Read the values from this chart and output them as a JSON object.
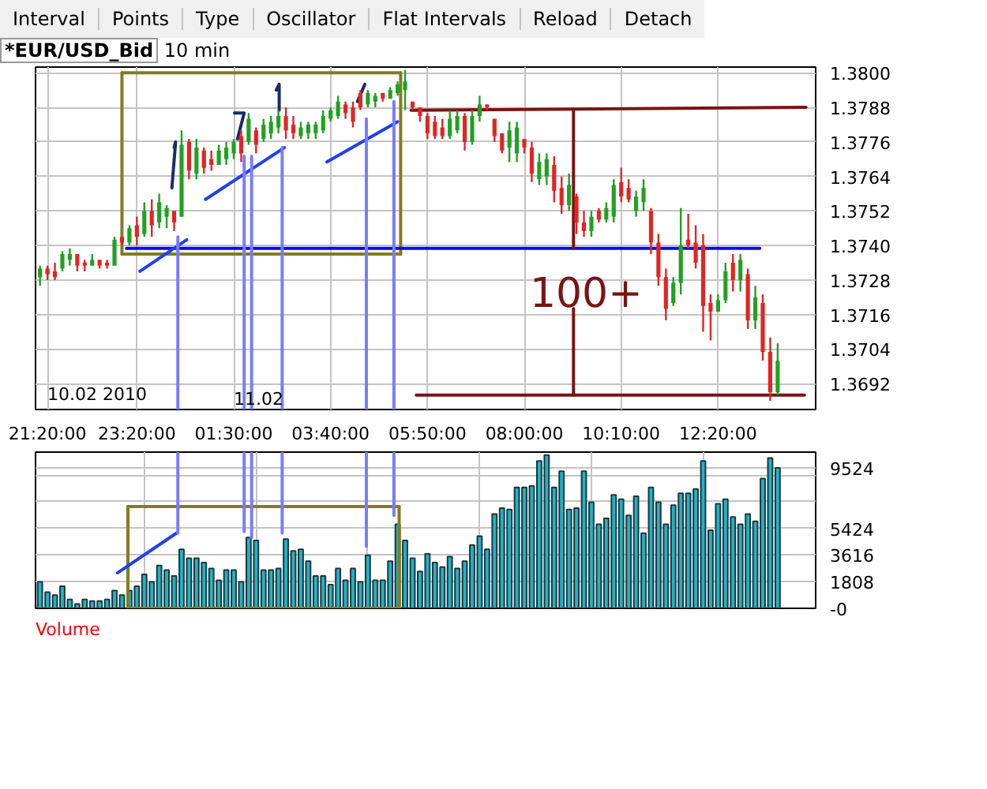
{
  "chart_data": [
    {
      "type": "other",
      "annotations": [
        "Interval",
        "Points",
        "Type",
        "Oscillator",
        "Flat Intervals",
        "Reload",
        "Detach"
      ]
    },
    {
      "type": "candlestick",
      "title": "*EUR/USD_Bid",
      "subtitle": "10 min",
      "x": [
        "2010-02-10T21:10",
        "2010-02-10T21:20",
        "2010-02-10T21:30",
        "2010-02-10T21:40",
        "2010-02-10T21:50",
        "2010-02-10T22:00",
        "2010-02-10T22:10",
        "2010-02-10T22:20",
        "2010-02-10T22:30",
        "2010-02-10T22:40",
        "2010-02-10T22:50",
        "2010-02-10T23:00",
        "2010-02-10T23:10",
        "2010-02-10T23:20",
        "2010-02-10T23:30",
        "2010-02-10T23:40",
        "2010-02-10T23:50",
        "2010-02-11T00:00",
        "2010-02-11T00:10",
        "2010-02-11T00:20",
        "2010-02-11T00:30",
        "2010-02-11T00:40",
        "2010-02-11T00:50",
        "2010-02-11T01:00",
        "2010-02-11T01:10",
        "2010-02-11T01:20",
        "2010-02-11T01:30",
        "2010-02-11T01:40",
        "2010-02-11T01:50",
        "2010-02-11T02:00",
        "2010-02-11T02:10",
        "2010-02-11T02:20",
        "2010-02-11T02:30",
        "2010-02-11T02:40",
        "2010-02-11T02:50",
        "2010-02-11T03:00",
        "2010-02-11T03:10",
        "2010-02-11T03:20",
        "2010-02-11T03:30",
        "2010-02-11T03:40",
        "2010-02-11T03:50",
        "2010-02-11T04:00",
        "2010-02-11T04:10",
        "2010-02-11T04:20",
        "2010-02-11T04:30",
        "2010-02-11T04:40",
        "2010-02-11T04:50",
        "2010-02-11T05:00",
        "2010-02-11T05:10",
        "2010-02-11T05:20",
        "2010-02-11T05:30",
        "2010-02-11T05:40",
        "2010-02-11T05:50",
        "2010-02-11T06:00",
        "2010-02-11T06:10",
        "2010-02-11T06:20",
        "2010-02-11T06:30",
        "2010-02-11T06:40",
        "2010-02-11T06:50",
        "2010-02-11T07:00",
        "2010-02-11T07:10",
        "2010-02-11T07:20",
        "2010-02-11T07:30",
        "2010-02-11T07:40",
        "2010-02-11T07:50",
        "2010-02-11T08:00",
        "2010-02-11T08:10",
        "2010-02-11T08:20",
        "2010-02-11T08:30",
        "2010-02-11T08:40",
        "2010-02-11T08:50",
        "2010-02-11T09:00",
        "2010-02-11T09:10",
        "2010-02-11T09:20",
        "2010-02-11T09:30",
        "2010-02-11T09:40",
        "2010-02-11T09:50",
        "2010-02-11T10:00",
        "2010-02-11T10:10",
        "2010-02-11T10:20",
        "2010-02-11T10:30",
        "2010-02-11T10:40",
        "2010-02-11T10:50",
        "2010-02-11T11:00",
        "2010-02-11T11:10",
        "2010-02-11T11:20",
        "2010-02-11T11:30",
        "2010-02-11T11:40",
        "2010-02-11T11:50",
        "2010-02-11T12:00",
        "2010-02-11T12:10",
        "2010-02-11T12:20",
        "2010-02-11T12:30",
        "2010-02-11T12:40",
        "2010-02-11T12:50",
        "2010-02-11T13:00",
        "2010-02-11T13:10",
        "2010-02-11T13:20",
        "2010-02-11T13:30",
        "2010-02-11T13:40"
      ],
      "ohlc": [
        [
          1.3729,
          1.3733,
          1.3726,
          1.3732
        ],
        [
          1.3732,
          1.3733,
          1.3728,
          1.373
        ],
        [
          1.3731,
          1.3734,
          1.3728,
          1.3729
        ],
        [
          1.3732,
          1.3738,
          1.3731,
          1.3737
        ],
        [
          1.3735,
          1.3739,
          1.3733,
          1.3737
        ],
        [
          1.3737,
          1.3737,
          1.3731,
          1.3733
        ],
        [
          1.3734,
          1.3735,
          1.3731,
          1.3733
        ],
        [
          1.3733,
          1.3737,
          1.3733,
          1.3735
        ],
        [
          1.3735,
          1.3735,
          1.3732,
          1.3733
        ],
        [
          1.3734,
          1.3735,
          1.3732,
          1.3733
        ],
        [
          1.3733,
          1.3743,
          1.3733,
          1.3742
        ],
        [
          1.3743,
          1.3743,
          1.374,
          1.3741
        ],
        [
          1.3741,
          1.3747,
          1.374,
          1.3746
        ],
        [
          1.3747,
          1.375,
          1.374,
          1.3743
        ],
        [
          1.3744,
          1.3755,
          1.3743,
          1.3752
        ],
        [
          1.3752,
          1.3756,
          1.3743,
          1.3747
        ],
        [
          1.3748,
          1.3758,
          1.3746,
          1.3755
        ],
        [
          1.375,
          1.3754,
          1.3746,
          1.3753
        ],
        [
          1.3752,
          1.3752,
          1.3745,
          1.3748
        ],
        [
          1.375,
          1.378,
          1.375,
          1.3775
        ],
        [
          1.3776,
          1.3777,
          1.3763,
          1.3766
        ],
        [
          1.3765,
          1.3777,
          1.3763,
          1.3774
        ],
        [
          1.3773,
          1.3774,
          1.3765,
          1.3767
        ],
        [
          1.377,
          1.3773,
          1.3766,
          1.3768
        ],
        [
          1.3768,
          1.3775,
          1.3768,
          1.3773
        ],
        [
          1.377,
          1.3776,
          1.3768,
          1.3774
        ],
        [
          1.3772,
          1.3777,
          1.377,
          1.3776
        ],
        [
          1.3778,
          1.378,
          1.3769,
          1.3772
        ],
        [
          1.3776,
          1.3786,
          1.3775,
          1.3784
        ],
        [
          1.378,
          1.3781,
          1.3772,
          1.3775
        ],
        [
          1.3777,
          1.3784,
          1.3776,
          1.3782
        ],
        [
          1.3779,
          1.3785,
          1.3777,
          1.3783
        ],
        [
          1.3781,
          1.3787,
          1.3779,
          1.3785
        ],
        [
          1.3785,
          1.3788,
          1.3777,
          1.378
        ],
        [
          1.3782,
          1.3785,
          1.3777,
          1.3779
        ],
        [
          1.3778,
          1.3783,
          1.3777,
          1.3781
        ],
        [
          1.3779,
          1.3783,
          1.3777,
          1.3782
        ],
        [
          1.3779,
          1.3783,
          1.3777,
          1.3782
        ],
        [
          1.378,
          1.3787,
          1.3779,
          1.3785
        ],
        [
          1.3784,
          1.3788,
          1.3783,
          1.3787
        ],
        [
          1.3785,
          1.3792,
          1.3784,
          1.379
        ],
        [
          1.3789,
          1.379,
          1.3784,
          1.3786
        ],
        [
          1.3788,
          1.379,
          1.3781,
          1.3783
        ],
        [
          1.3793,
          1.3794,
          1.3787,
          1.3788
        ],
        [
          1.3789,
          1.3794,
          1.3788,
          1.3793
        ],
        [
          1.379,
          1.3793,
          1.3788,
          1.3792
        ],
        [
          1.3793,
          1.3793,
          1.379,
          1.3791
        ],
        [
          1.3791,
          1.3795,
          1.3791,
          1.3794
        ],
        [
          1.3793,
          1.3797,
          1.3792,
          1.3796
        ],
        [
          1.3794,
          1.3801,
          1.3787,
          1.3797
        ],
        [
          1.379,
          1.379,
          1.3787,
          1.3788
        ],
        [
          1.3788,
          1.3788,
          1.3783,
          1.3785
        ],
        [
          1.3785,
          1.3786,
          1.3777,
          1.3779
        ],
        [
          1.3783,
          1.3785,
          1.3777,
          1.3778
        ],
        [
          1.3781,
          1.3784,
          1.3777,
          1.3778
        ],
        [
          1.3778,
          1.3787,
          1.3777,
          1.3784
        ],
        [
          1.378,
          1.3787,
          1.3779,
          1.3785
        ],
        [
          1.3785,
          1.3786,
          1.3773,
          1.3776
        ],
        [
          1.3776,
          1.3787,
          1.3775,
          1.3785
        ],
        [
          1.3785,
          1.3792,
          1.3783,
          1.3789
        ],
        [
          1.3789,
          1.3789,
          1.3787,
          1.3788
        ],
        [
          1.3784,
          1.3784,
          1.3776,
          1.3778
        ],
        [
          1.3779,
          1.3779,
          1.3772,
          1.3773
        ],
        [
          1.3774,
          1.3783,
          1.3769,
          1.378
        ],
        [
          1.3772,
          1.3783,
          1.3769,
          1.3781
        ],
        [
          1.3777,
          1.3777,
          1.3772,
          1.3774
        ],
        [
          1.3774,
          1.3776,
          1.3762,
          1.3765
        ],
        [
          1.3763,
          1.3772,
          1.3761,
          1.3769
        ],
        [
          1.3764,
          1.3772,
          1.3761,
          1.377
        ],
        [
          1.3768,
          1.3771,
          1.3755,
          1.3759
        ],
        [
          1.376,
          1.3764,
          1.3751,
          1.3754
        ],
        [
          1.3754,
          1.3765,
          1.3752,
          1.3761
        ],
        [
          1.3757,
          1.3758,
          1.3744,
          1.3748
        ],
        [
          1.3748,
          1.3752,
          1.3743,
          1.3745
        ],
        [
          1.3745,
          1.3752,
          1.3743,
          1.375
        ],
        [
          1.3752,
          1.3753,
          1.3748,
          1.3749
        ],
        [
          1.3749,
          1.3755,
          1.3748,
          1.3753
        ],
        [
          1.375,
          1.3763,
          1.3748,
          1.3761
        ],
        [
          1.3762,
          1.3767,
          1.3755,
          1.3757
        ],
        [
          1.376,
          1.3763,
          1.3755,
          1.3756
        ],
        [
          1.3752,
          1.3759,
          1.375,
          1.3757
        ],
        [
          1.3755,
          1.3763,
          1.3752,
          1.376
        ],
        [
          1.3752,
          1.3753,
          1.3737,
          1.3741
        ],
        [
          1.3741,
          1.3744,
          1.3726,
          1.3729
        ],
        [
          1.3729,
          1.3732,
          1.3714,
          1.3718
        ],
        [
          1.372,
          1.3729,
          1.3719,
          1.3727
        ],
        [
          1.3727,
          1.3753,
          1.3723,
          1.374
        ],
        [
          1.3742,
          1.3751,
          1.3739,
          1.374
        ],
        [
          1.3741,
          1.3747,
          1.3732,
          1.3734
        ],
        [
          1.374,
          1.3744,
          1.371,
          1.3719
        ],
        [
          1.372,
          1.3723,
          1.3707,
          1.3717
        ],
        [
          1.3717,
          1.3723,
          1.3717,
          1.3721
        ],
        [
          1.3721,
          1.3734,
          1.372,
          1.3731
        ],
        [
          1.3734,
          1.3737,
          1.3724,
          1.3728
        ],
        [
          1.3728,
          1.3737,
          1.3724,
          1.3735
        ],
        [
          1.373,
          1.3732,
          1.3711,
          1.3714
        ],
        [
          1.3714,
          1.3726,
          1.3711,
          1.3722
        ],
        [
          1.372,
          1.3723,
          1.37,
          1.3703
        ],
        [
          1.3703,
          1.3708,
          1.3686,
          1.3689
        ],
        [
          1.3689,
          1.3706,
          1.3688,
          1.37
        ]
      ],
      "colors": [
        "#21a121",
        "#e32424",
        "#e32424",
        "#21a121",
        "#21a121",
        "#e32424",
        "#e32424",
        "#21a121",
        "#e32424",
        "#e32424",
        "#21a121",
        "#e32424",
        "#21a121",
        "#e32424",
        "#21a121",
        "#e32424",
        "#21a121",
        "#21a121",
        "#e32424",
        "#21a121",
        "#e32424",
        "#21a121",
        "#e32424",
        "#e32424",
        "#21a121",
        "#21a121",
        "#21a121",
        "#e32424",
        "#21a121",
        "#e32424",
        "#21a121",
        "#21a121",
        "#21a121",
        "#e32424",
        "#e32424",
        "#21a121",
        "#21a121",
        "#21a121",
        "#21a121",
        "#21a121",
        "#21a121",
        "#e32424",
        "#e32424",
        "#e32424",
        "#21a121",
        "#21a121",
        "#e32424",
        "#21a121",
        "#21a121",
        "#21a121",
        "#e32424",
        "#e32424",
        "#e32424",
        "#e32424",
        "#e32424",
        "#21a121",
        "#21a121",
        "#e32424",
        "#21a121",
        "#21a121",
        "#e32424",
        "#e32424",
        "#e32424",
        "#21a121",
        "#21a121",
        "#e32424",
        "#e32424",
        "#21a121",
        "#21a121",
        "#e32424",
        "#e32424",
        "#21a121",
        "#e32424",
        "#e32424",
        "#21a121",
        "#e32424",
        "#21a121",
        "#21a121",
        "#e32424",
        "#e32424",
        "#21a121",
        "#21a121",
        "#e32424",
        "#e32424",
        "#e32424",
        "#21a121",
        "#21a121",
        "#e32424",
        "#e32424",
        "#e32424",
        "#e32424",
        "#21a121",
        "#21a121",
        "#e32424",
        "#21a121",
        "#e32424",
        "#21a121",
        "#e32424",
        "#e32424",
        "#21a121"
      ],
      "series": [
        {
          "type": "line",
          "color": "#807d22",
          "x": [
            "2010-02-10T23:00",
            "2010-02-11T05:14"
          ],
          "values": [
            1.38,
            1.38
          ]
        },
        {
          "type": "line",
          "color": "#807d22",
          "x": [
            "2010-02-10T23:00",
            "2010-02-11T05:14"
          ],
          "values": [
            1.3737,
            1.3737
          ]
        },
        {
          "type": "line",
          "color": "#807d22",
          "x": [
            "2010-02-10T23:00",
            "2010-02-10T23:00"
          ],
          "values": [
            1.3737,
            1.38
          ]
        },
        {
          "type": "line",
          "color": "#807d22",
          "x": [
            "2010-02-11T05:14",
            "2010-02-11T05:14"
          ],
          "values": [
            1.3737,
            1.38
          ]
        },
        {
          "type": "line",
          "color": "#0a0aee",
          "x": [
            "2010-02-10T23:06",
            "2010-02-11T13:16"
          ],
          "values": [
            1.3739,
            1.3739
          ]
        },
        {
          "type": "line",
          "color": "#7a1414",
          "x": [
            "2010-02-11T05:28",
            "2010-02-11T14:18"
          ],
          "values": [
            1.3787,
            1.3788
          ]
        },
        {
          "type": "line",
          "color": "#7a1414",
          "x": [
            "2010-02-11T05:35",
            "2010-02-11T14:16"
          ],
          "values": [
            1.3688,
            1.3688
          ]
        },
        {
          "type": "line",
          "color": "#7a1414",
          "x": [
            "2010-02-11T09:06",
            "2010-02-11T09:06"
          ],
          "values": [
            1.3787,
            1.3739
          ]
        },
        {
          "type": "line",
          "name": "100+",
          "color": "#7a1414",
          "x": [
            "2010-02-11T09:06",
            "2010-02-11T09:06"
          ],
          "values": [
            1.3718,
            1.3688
          ]
        },
        {
          "type": "line",
          "color": "#2040f0",
          "x": [
            "2010-02-10T23:24",
            "2010-02-11T00:27"
          ],
          "values": [
            1.3731,
            1.3742
          ]
        },
        {
          "type": "line",
          "color": "#2040f0",
          "x": [
            "2010-02-11T00:52",
            "2010-02-11T02:38"
          ],
          "values": [
            1.3756,
            1.3774
          ]
        },
        {
          "type": "line",
          "color": "#2040f0",
          "x": [
            "2010-02-11T03:35",
            "2010-02-11T05:10"
          ],
          "values": [
            1.3769,
            1.3783
          ]
        },
        {
          "type": "line",
          "color": "#7b7bff",
          "x": [
            "2010-02-11T00:15",
            "2010-02-11T00:15"
          ],
          "values": [
            1.3743,
            1.3683
          ]
        },
        {
          "type": "line",
          "color": "#7b7bff",
          "x": [
            "2010-02-11T01:44",
            "2010-02-11T01:44"
          ],
          "values": [
            1.3771,
            1.3683
          ]
        },
        {
          "type": "line",
          "color": "#7b7bff",
          "x": [
            "2010-02-11T01:54",
            "2010-02-11T01:54"
          ],
          "values": [
            1.3771,
            1.3683
          ]
        },
        {
          "type": "line",
          "color": "#7b7bff",
          "x": [
            "2010-02-11T02:35",
            "2010-02-11T02:35"
          ],
          "values": [
            1.3774,
            1.3683
          ]
        },
        {
          "type": "line",
          "color": "#7b7bff",
          "x": [
            "2010-02-11T04:28",
            "2010-02-11T04:28"
          ],
          "values": [
            1.3784,
            1.3683
          ]
        },
        {
          "type": "line",
          "color": "#7b7bff",
          "x": [
            "2010-02-11T05:05",
            "2010-02-11T05:05"
          ],
          "values": [
            1.379,
            1.3683
          ]
        },
        {
          "type": "line",
          "color": "#1d2b6b",
          "x": [
            "2010-02-11T00:10",
            "2010-02-11T00:12",
            "2010-02-11T00:07"
          ],
          "values": [
            1.3774,
            1.3776,
            1.376
          ]
        },
        {
          "type": "line",
          "color": "#1d2b6b",
          "x": [
            "2010-02-11T01:31",
            "2010-02-11T01:44",
            "2010-02-11T01:35"
          ],
          "values": [
            1.3786,
            1.3786,
            1.3777
          ]
        },
        {
          "type": "line",
          "color": "#1d2b6b",
          "x": [
            "2010-02-11T02:27",
            "2010-02-11T02:31",
            "2010-02-11T02:31"
          ],
          "values": [
            1.3794,
            1.3796,
            1.3787
          ]
        },
        {
          "type": "line",
          "color": "#1d2b6b",
          "x": [
            "2010-02-11T04:16",
            "2010-02-11T04:26"
          ],
          "values": [
            1.379,
            1.3796
          ]
        }
      ],
      "xlim": [
        "2010-02-10T21:04",
        "2010-02-11T14:31"
      ],
      "ylim": [
        1.3683,
        1.3802
      ],
      "xticks": [
        {
          "value": "2010-02-10T21:20",
          "label": "21:20:00"
        },
        {
          "value": "2010-02-10T23:20",
          "label": "23:20:00"
        },
        {
          "value": "2010-02-11T01:30",
          "label": "01:30:00"
        },
        {
          "value": "2010-02-11T03:40",
          "label": "03:40:00"
        },
        {
          "value": "2010-02-11T05:50",
          "label": "05:50:00"
        },
        {
          "value": "2010-02-11T08:00",
          "label": "08:00:00"
        },
        {
          "value": "2010-02-11T10:10",
          "label": "10:10:00"
        },
        {
          "value": "2010-02-11T12:20",
          "label": "12:20:00"
        }
      ],
      "yticks": [
        1.3692,
        1.3704,
        1.3716,
        1.3728,
        {
          "value": 1.374,
          "label": "1.3740"
        },
        1.3752,
        1.3764,
        1.3776,
        1.3788,
        {
          "value": 1.38,
          "label": "1.3800"
        }
      ],
      "grid": true,
      "annotations": [
        "10.02 2010",
        "11.02"
      ]
    },
    {
      "type": "bar",
      "title": "Volume",
      "x": [
        "2010-02-10T21:10",
        "2010-02-10T21:20",
        "2010-02-10T21:30",
        "2010-02-10T21:40",
        "2010-02-10T21:50",
        "2010-02-10T22:00",
        "2010-02-10T22:10",
        "2010-02-10T22:20",
        "2010-02-10T22:30",
        "2010-02-10T22:40",
        "2010-02-10T22:50",
        "2010-02-10T23:00",
        "2010-02-10T23:10",
        "2010-02-10T23:20",
        "2010-02-10T23:30",
        "2010-02-10T23:40",
        "2010-02-10T23:50",
        "2010-02-11T00:00",
        "2010-02-11T00:10",
        "2010-02-11T00:20",
        "2010-02-11T00:30",
        "2010-02-11T00:40",
        "2010-02-11T00:50",
        "2010-02-11T01:00",
        "2010-02-11T01:10",
        "2010-02-11T01:20",
        "2010-02-11T01:30",
        "2010-02-11T01:40",
        "2010-02-11T01:50",
        "2010-02-11T02:00",
        "2010-02-11T02:10",
        "2010-02-11T02:20",
        "2010-02-11T02:30",
        "2010-02-11T02:40",
        "2010-02-11T02:50",
        "2010-02-11T03:00",
        "2010-02-11T03:10",
        "2010-02-11T03:20",
        "2010-02-11T03:30",
        "2010-02-11T03:40",
        "2010-02-11T03:50",
        "2010-02-11T04:00",
        "2010-02-11T04:10",
        "2010-02-11T04:20",
        "2010-02-11T04:30",
        "2010-02-11T04:40",
        "2010-02-11T04:50",
        "2010-02-11T05:00",
        "2010-02-11T05:10",
        "2010-02-11T05:20",
        "2010-02-11T05:30",
        "2010-02-11T05:40",
        "2010-02-11T05:50",
        "2010-02-11T06:00",
        "2010-02-11T06:10",
        "2010-02-11T06:20",
        "2010-02-11T06:30",
        "2010-02-11T06:40",
        "2010-02-11T06:50",
        "2010-02-11T07:00",
        "2010-02-11T07:10",
        "2010-02-11T07:20",
        "2010-02-11T07:30",
        "2010-02-11T07:40",
        "2010-02-11T07:50",
        "2010-02-11T08:00",
        "2010-02-11T08:10",
        "2010-02-11T08:20",
        "2010-02-11T08:30",
        "2010-02-11T08:40",
        "2010-02-11T08:50",
        "2010-02-11T09:00",
        "2010-02-11T09:10",
        "2010-02-11T09:20",
        "2010-02-11T09:30",
        "2010-02-11T09:40",
        "2010-02-11T09:50",
        "2010-02-11T10:00",
        "2010-02-11T10:10",
        "2010-02-11T10:20",
        "2010-02-11T10:30",
        "2010-02-11T10:40",
        "2010-02-11T10:50",
        "2010-02-11T11:00",
        "2010-02-11T11:10",
        "2010-02-11T11:20",
        "2010-02-11T11:30",
        "2010-02-11T11:40",
        "2010-02-11T11:50",
        "2010-02-11T12:00",
        "2010-02-11T12:10",
        "2010-02-11T12:20",
        "2010-02-11T12:30",
        "2010-02-11T12:40",
        "2010-02-11T12:50",
        "2010-02-11T13:00",
        "2010-02-11T13:10",
        "2010-02-11T13:20",
        "2010-02-11T13:30",
        "2010-02-11T13:40"
      ],
      "series": [
        {
          "type": "bar",
          "color": "#19b6c9",
          "values": [
            1800,
            1100,
            900,
            1500,
            600,
            300,
            600,
            500,
            500,
            600,
            1200,
            900,
            1200,
            1500,
            2300,
            1800,
            2900,
            2600,
            2200,
            4000,
            3400,
            3400,
            3100,
            2700,
            1900,
            2600,
            2600,
            1800,
            4800,
            4600,
            2600,
            2600,
            2700,
            4700,
            3900,
            4000,
            3200,
            2200,
            2200,
            1600,
            2700,
            1900,
            2700,
            1800,
            3600,
            1900,
            1900,
            3200,
            5700,
            4600,
            3400,
            2500,
            3700,
            3100,
            2800,
            3500,
            2700,
            3200,
            4300,
            4900,
            4000,
            6400,
            6800,
            6700,
            8200,
            8200,
            8300,
            10000,
            10400,
            8200,
            9300,
            6700,
            6800,
            9300,
            7200,
            5700,
            6100,
            7700,
            7400,
            6300,
            7600,
            5100,
            8200,
            7200,
            5700,
            7000,
            7800,
            7800,
            8100,
            10000,
            5300,
            7100,
            7400,
            6200,
            5700,
            6400,
            5900,
            8800,
            10200,
            9524
          ]
        },
        {
          "type": "line",
          "color": "#807d22",
          "x": [
            "2010-02-10T23:08",
            "2010-02-11T05:12"
          ],
          "values": [
            6900,
            6900
          ]
        },
        {
          "type": "line",
          "color": "#807d22",
          "x": [
            "2010-02-10T23:08",
            "2010-02-11T05:12"
          ],
          "values": [
            0,
            0
          ]
        },
        {
          "type": "line",
          "color": "#807d22",
          "x": [
            "2010-02-10T23:08",
            "2010-02-10T23:08"
          ],
          "values": [
            0,
            6900
          ]
        },
        {
          "type": "line",
          "color": "#807d22",
          "x": [
            "2010-02-11T05:12",
            "2010-02-11T05:12"
          ],
          "values": [
            0,
            6900
          ]
        },
        {
          "type": "line",
          "color": "#2040f0",
          "x": [
            "2010-02-10T22:54",
            "2010-02-11T00:13"
          ],
          "values": [
            2400,
            5100
          ]
        },
        {
          "type": "line",
          "color": "#7b7bff",
          "x": [
            "2010-02-11T00:15",
            "2010-02-11T00:15"
          ],
          "values": [
            10600,
            5100
          ]
        },
        {
          "type": "line",
          "color": "#7b7bff",
          "x": [
            "2010-02-11T01:44",
            "2010-02-11T01:44"
          ],
          "values": [
            10600,
            5200
          ]
        },
        {
          "type": "line",
          "color": "#7b7bff",
          "x": [
            "2010-02-11T01:54",
            "2010-02-11T01:54"
          ],
          "values": [
            10600,
            4800
          ]
        },
        {
          "type": "line",
          "color": "#7b7bff",
          "x": [
            "2010-02-11T02:35",
            "2010-02-11T02:35"
          ],
          "values": [
            10600,
            5100
          ]
        },
        {
          "type": "line",
          "color": "#7b7bff",
          "x": [
            "2010-02-11T04:28",
            "2010-02-11T04:28"
          ],
          "values": [
            10600,
            4200
          ]
        },
        {
          "type": "line",
          "color": "#7b7bff",
          "x": [
            "2010-02-11T05:05",
            "2010-02-11T05:05"
          ],
          "values": [
            10600,
            6300
          ]
        }
      ],
      "xlim": [
        "2010-02-10T21:04",
        "2010-02-11T14:31"
      ],
      "ylim": [
        0,
        10600
      ],
      "xticks": [
        "2010-02-10T23:30",
        "2010-02-11T02:00",
        "2010-02-11T04:30",
        "2010-02-11T07:00",
        "2010-02-11T09:30",
        "2010-02-11T12:00"
      ],
      "yticks": [
        {
          "value": 0,
          "label": "-0"
        },
        1808,
        3616,
        5424,
        {
          "value": 7232,
          "label": null
        },
        {
          "value": 9040,
          "label": null
        },
        9524
      ],
      "grid": true,
      "tick_labels": "y"
    }
  ]
}
